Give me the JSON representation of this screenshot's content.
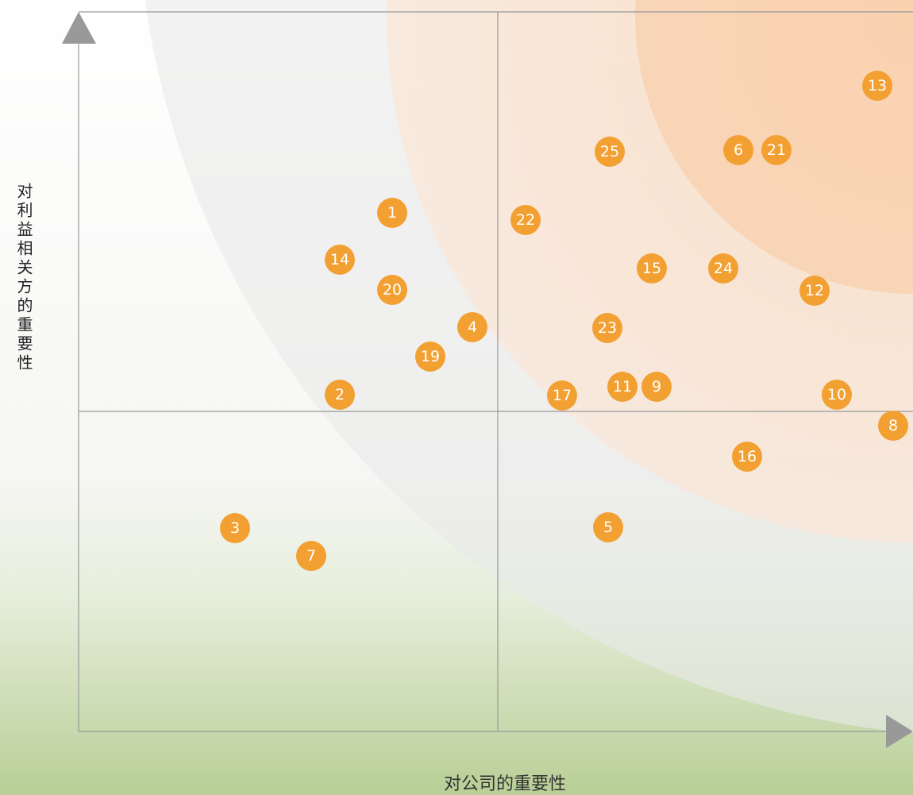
{
  "axes": {
    "y_title": "对利益相关方的重要性",
    "x_title": "对公司的重要性"
  },
  "points": [
    {
      "label": "1"
    },
    {
      "label": "2"
    },
    {
      "label": "3"
    },
    {
      "label": "4"
    },
    {
      "label": "5"
    },
    {
      "label": "6"
    },
    {
      "label": "7"
    },
    {
      "label": "8"
    },
    {
      "label": "9"
    },
    {
      "label": "10"
    },
    {
      "label": "11"
    },
    {
      "label": "12"
    },
    {
      "label": "13"
    },
    {
      "label": "14"
    },
    {
      "label": "15"
    },
    {
      "label": "16"
    },
    {
      "label": "17"
    },
    {
      "label": "19"
    },
    {
      "label": "20"
    },
    {
      "label": "21"
    },
    {
      "label": "22"
    },
    {
      "label": "23"
    },
    {
      "label": "24"
    },
    {
      "label": "25"
    }
  ]
}
